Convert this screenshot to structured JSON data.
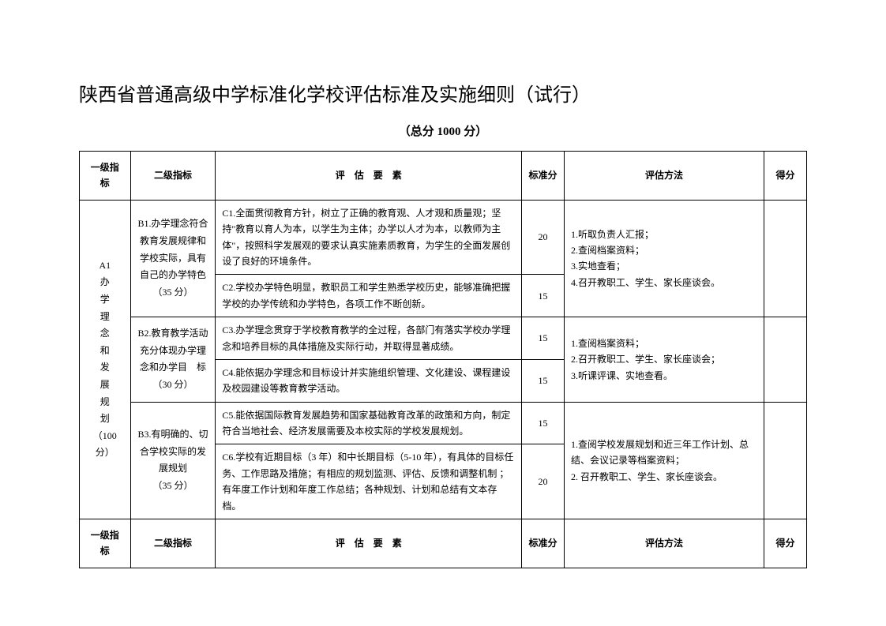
{
  "title": "陕西省普通高级中学标准化学校评估标准及实施细则（试行）",
  "subtitle": "（总分 1000 分）",
  "headers": {
    "col1": "一级指标",
    "col2": "二级指标",
    "col3": "评　估　要　素",
    "col4": "标准分",
    "col5": "评估方法",
    "col6": "得分"
  },
  "a1": {
    "code": "A1",
    "name_chars": [
      "办",
      "学",
      "理",
      "念",
      "和",
      "发",
      "展",
      "规",
      "划"
    ],
    "score": "（100 分）"
  },
  "b1": {
    "title": "B1.办学理念符合教育发展规律和学校实际，具有自己的办学特色",
    "score": "（35 分）"
  },
  "b2": {
    "title": "B2.教育教学活动充分体现办学理念和办学目　标",
    "score": "（30 分）"
  },
  "b3": {
    "title": "B3.有明确的、切合学校实际的发展规划",
    "score": "（35 分）"
  },
  "c1": {
    "text": "C1.全面贯彻教育方针，树立了正确的教育观、人才观和质量观；坚持\"教育以育人为本，以学生为主体；办学以人才为本，以教师为主体\"，按照科学发展观的要求认真实施素质教育，为学生的全面发展创设了良好的环境条件。",
    "score": "20"
  },
  "c2": {
    "text": "C2.学校办学特色明显，教职员工和学生熟悉学校历史，能够准确把握学校的办学传统和办学特色，各项工作不断创新。",
    "score": "15"
  },
  "c3": {
    "text": "C3.办学理念贯穿于学校教育教学的全过程，各部门有落实学校办学理念和培养目标的具体措施及实际行动，并取得显著成绩。",
    "score": "15"
  },
  "c4": {
    "text": "C4.能依据办学理念和目标设计并实施组织管理、文化建设、课程建设及校园建设等教育教学活动。",
    "score": "15"
  },
  "c5": {
    "text": "C5.能依据国际教育发展趋势和国家基础教育改革的政策和方向，制定符合当地社会、经济发展需要及本校实际的学校发展规划。",
    "score": "15"
  },
  "c6": {
    "text": "C6.学校有近期目标（3 年）和中长期目标（5-10 年），有具体的目标任务、工作思路及措施；有相应的规划监测、评估、反馈和调整机制 ；有年度工作计划和年度工作总结；各种规划、计划和总结有文本存档。",
    "score": "20"
  },
  "methods": {
    "m1": "1.听取负责人汇报；\n2.查阅档案资料；\n3.实地查看；\n4.召开教职工、学生、家长座谈会。",
    "m2": "1.查阅档案资料；\n2.召开教职工、学生、家长座谈会；\n3.听课评课、实地查看。",
    "m3": "1.查阅学校发展规划和近三年工作计划、总结、会议记录等档案资料；\n2. 召开教职工、学生、家长座谈会。"
  }
}
